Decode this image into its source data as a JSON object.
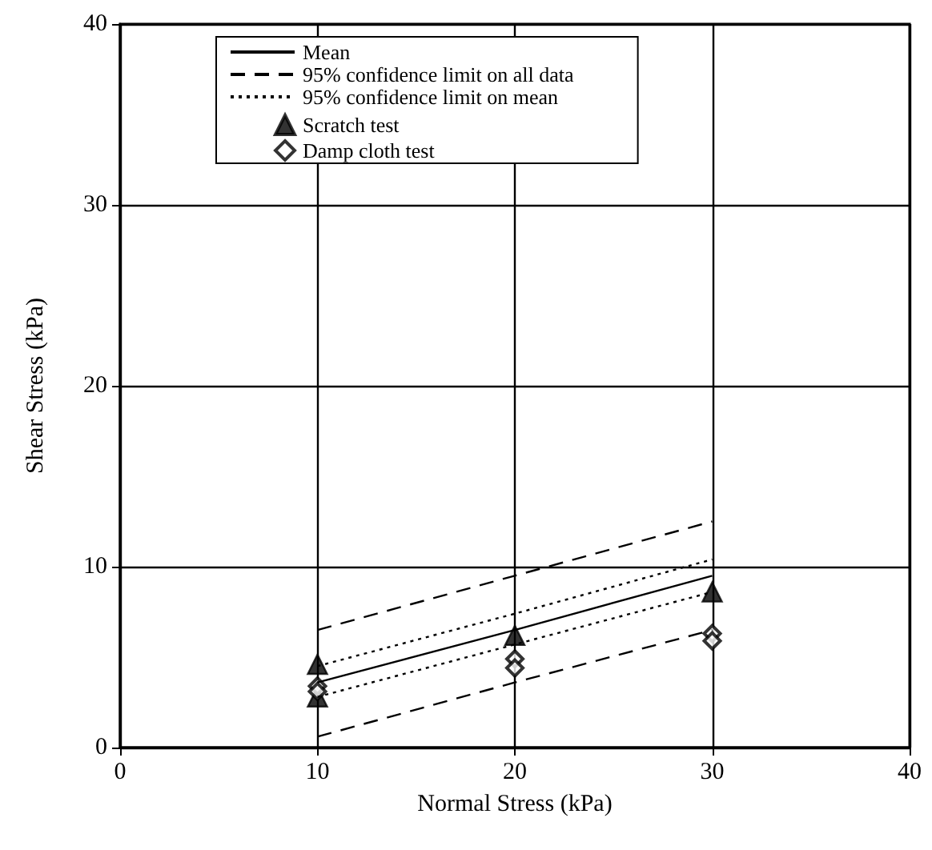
{
  "chart_data": {
    "type": "scatter",
    "xlabel": "Normal Stress (kPa)",
    "ylabel": "Shear Stress (kPa)",
    "xlim": [
      0,
      40
    ],
    "xticks": [
      0,
      10,
      20,
      30,
      40
    ],
    "ylim": [
      0,
      40
    ],
    "yticks": [
      0,
      10,
      20,
      30,
      40
    ],
    "grid": true,
    "legend": "top",
    "series": [
      {
        "name": "Mean",
        "type": "line",
        "line_style": "solid",
        "marker": "none",
        "color": "#000000",
        "x": [
          10,
          20,
          30
        ],
        "values": [
          3.6,
          6.5,
          9.5
        ]
      },
      {
        "name": "95% confidence limit on all data",
        "type": "line",
        "line_style": "dashed",
        "marker": "none",
        "color": "#000000",
        "x": [
          10,
          20,
          30
        ],
        "values": [
          6.5,
          9.5,
          12.5
        ]
      },
      {
        "type": "line",
        "line_style": "dashed",
        "marker": "none",
        "color": "#000000",
        "x": [
          10,
          20,
          30
        ],
        "values": [
          0.6,
          3.6,
          6.5
        ]
      },
      {
        "name": "95% confidence limit on mean",
        "type": "line",
        "line_style": "dotted",
        "marker": "none",
        "color": "#000000",
        "x": [
          10,
          20,
          30
        ],
        "values": [
          4.5,
          7.4,
          10.4
        ]
      },
      {
        "type": "line",
        "line_style": "dotted",
        "marker": "none",
        "color": "#000000",
        "x": [
          10,
          20,
          30
        ],
        "values": [
          2.8,
          5.7,
          8.6
        ]
      },
      {
        "name": "Scratch test",
        "marker": "triangle",
        "color": "#000000",
        "x": [
          10,
          10,
          20,
          30
        ],
        "values": [
          4.6,
          2.8,
          6.2,
          8.6
        ]
      },
      {
        "name": "Damp cloth test",
        "marker": "diamond",
        "color": "#000000",
        "x": [
          10,
          10,
          20,
          20,
          30,
          30
        ],
        "values": [
          3.4,
          3.1,
          4.9,
          4.4,
          6.3,
          5.9
        ]
      }
    ]
  }
}
